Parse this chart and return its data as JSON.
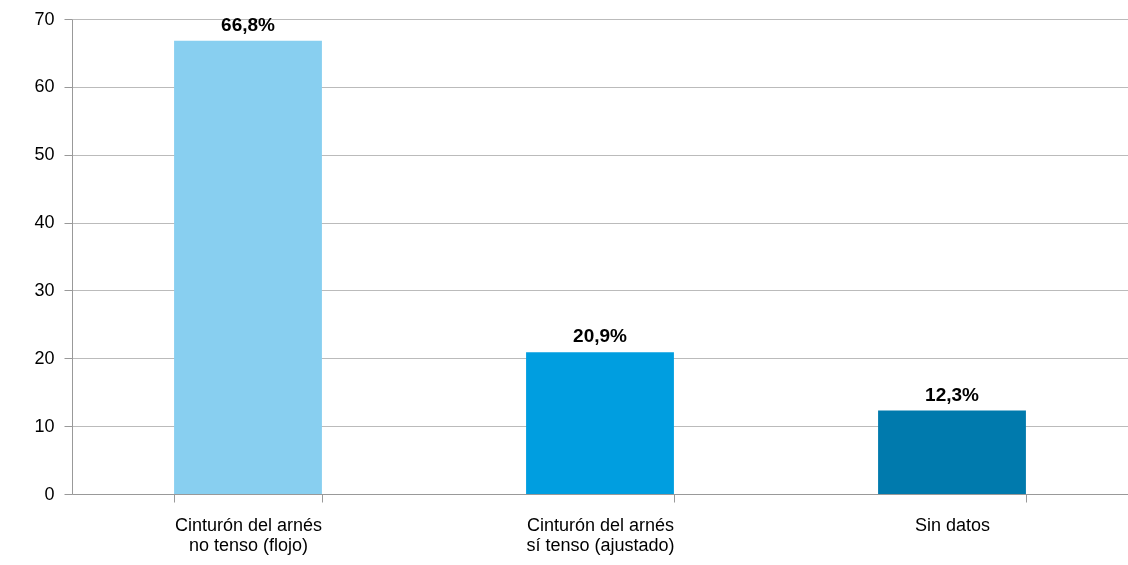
{
  "chart_data": {
    "type": "bar",
    "categories": [
      "Cinturón del arnés\nno tenso (flojo)",
      "Cinturón del arnés\nsí tenso (ajustado)",
      "Sin datos"
    ],
    "values": [
      66.8,
      20.9,
      12.3
    ],
    "colors": [
      "#88cff0",
      "#009ee0",
      "#007aad"
    ],
    "value_labels": [
      "66,8%",
      "20,9%",
      "12,3%"
    ],
    "ylim": [
      0,
      70
    ],
    "yticks": [
      0,
      10,
      20,
      30,
      40,
      50,
      60,
      70
    ],
    "grid": "y"
  }
}
